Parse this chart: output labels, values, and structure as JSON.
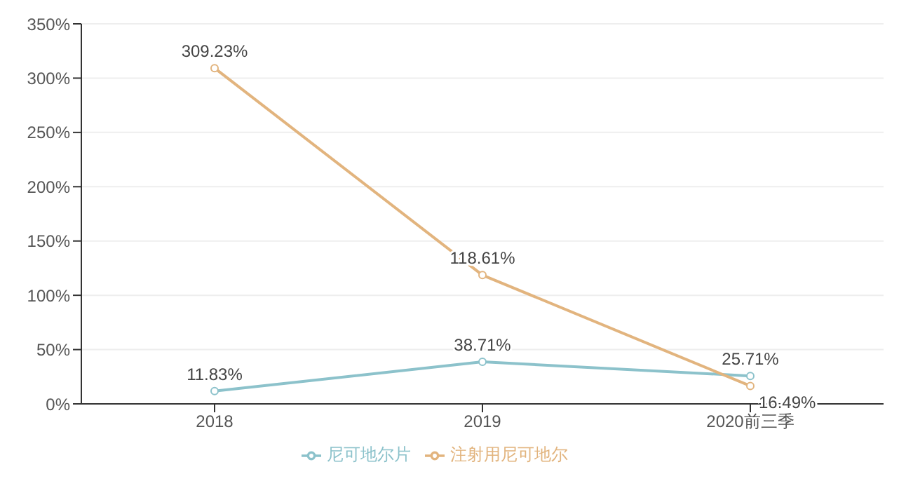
{
  "chart_data": {
    "type": "line",
    "categories": [
      "2018",
      "2019",
      "2020前三季"
    ],
    "series": [
      {
        "name": "尼可地尔片",
        "color": "#8cc2cb",
        "values": [
          11.83,
          38.71,
          25.71
        ],
        "value_labels": [
          "11.83%",
          "38.71%",
          "25.71%"
        ]
      },
      {
        "name": "注射用尼可地尔",
        "color": "#e2b47e",
        "values": [
          309.23,
          118.61,
          16.49
        ],
        "value_labels": [
          "309.23%",
          "118.61%",
          "16.49%"
        ]
      }
    ],
    "ylim": [
      0,
      350
    ],
    "yticks": [
      {
        "value": 0,
        "label": "0%"
      },
      {
        "value": 50,
        "label": "50%"
      },
      {
        "value": 100,
        "label": "100%"
      },
      {
        "value": 150,
        "label": "150%"
      },
      {
        "value": 200,
        "label": "200%"
      },
      {
        "value": 250,
        "label": "250%"
      },
      {
        "value": 300,
        "label": "300%"
      },
      {
        "value": 350,
        "label": "350%"
      }
    ],
    "grid": "y",
    "legend": "bottom",
    "marker": "circle",
    "line_style": "solid"
  }
}
